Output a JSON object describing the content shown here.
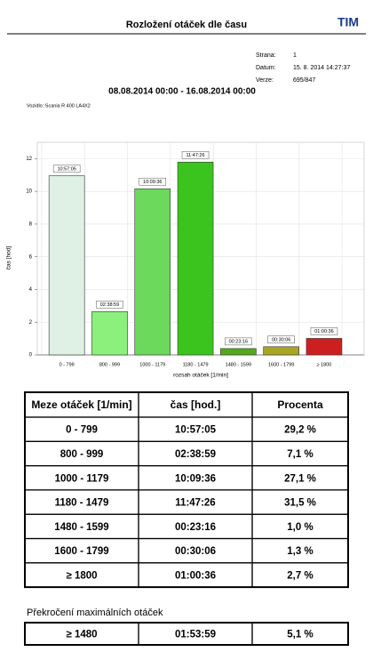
{
  "header": {
    "title": "Rozložení otáček dle času",
    "logo": "TIM"
  },
  "meta": [
    {
      "label": "Strana:",
      "value": "1"
    },
    {
      "label": "Datum:",
      "value": "15. 8. 2014 14:27:37"
    },
    {
      "label": "Verze:",
      "value": "695/847"
    }
  ],
  "date_range": "08.08.2014 00:00 - 16.08.2014 00:00",
  "vehicle": "Vozidlo:  Scania R 400 LA4X2",
  "chart_data": {
    "type": "bar",
    "categories": [
      "0 - 799",
      "800 - 999",
      "1000 - 1179",
      "1180 - 1479",
      "1480 - 1599",
      "1600 - 1799",
      "≥ 1800"
    ],
    "values": [
      10.9514,
      2.6497,
      10.16,
      11.7906,
      0.3878,
      0.5017,
      1.01
    ],
    "value_labels": [
      "10:57:05",
      "02:38:59",
      "10:09:36",
      "11:47:26",
      "00:23:16",
      "00:30:06",
      "01:00:36"
    ],
    "colors": [
      "#dff0e4",
      "#8cf07c",
      "#6cd85c",
      "#3cc41e",
      "#55a81c",
      "#a8a624",
      "#cc1f1f"
    ],
    "ylim": [
      0,
      13
    ],
    "yticks": [
      0,
      2,
      4,
      6,
      8,
      10,
      12
    ],
    "grid": true,
    "xlabel": "rozsah otáček [1/min]",
    "ylabel": "čas [hod]"
  },
  "table": {
    "headers": [
      "Meze otáček [1/min]",
      "čas [hod.]",
      "Procenta"
    ],
    "rows": [
      [
        "0 - 799",
        "10:57:05",
        "29,2 %"
      ],
      [
        "800 - 999",
        "02:38:59",
        "7,1 %"
      ],
      [
        "1000 - 1179",
        "10:09:36",
        "27,1 %"
      ],
      [
        "1180 - 1479",
        "11:47:26",
        "31,5 %"
      ],
      [
        "1480 - 1599",
        "00:23:16",
        "1,0 %"
      ],
      [
        "1600 - 1799",
        "00:30:06",
        "1,3 %"
      ],
      [
        "≥ 1800",
        "01:00:36",
        "2,7 %"
      ]
    ]
  },
  "overspeed": {
    "title": "Překročení maximálních otáček",
    "row": [
      "≥ 1480",
      "01:53:59",
      "5,1 %"
    ]
  }
}
